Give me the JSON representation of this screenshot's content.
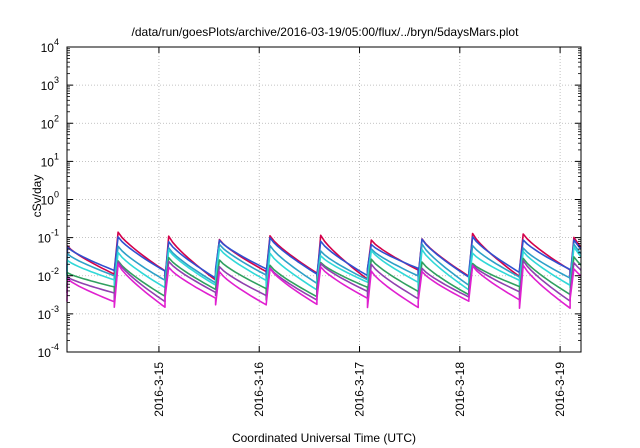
{
  "chart_data": {
    "type": "line",
    "title": "/data/run/goesPlots/archive/2016-03-19/05:00/flux/../bryn/5daysMars.plot",
    "xlabel": "Coordinated Universal Time (UTC)",
    "ylabel": "cSv/day",
    "yscale": "log",
    "ylim": [
      0.0001,
      10000
    ],
    "xlim": [
      "2016-03-14 02:00",
      "2016-03-19 05:00"
    ],
    "y_ticks": [
      {
        "base": "10",
        "exp": "-4",
        "value": 0.0001
      },
      {
        "base": "10",
        "exp": "-3",
        "value": 0.001
      },
      {
        "base": "10",
        "exp": "-2",
        "value": 0.01
      },
      {
        "base": "10",
        "exp": "-1",
        "value": 0.1
      },
      {
        "base": "10",
        "exp": "0",
        "value": 1
      },
      {
        "base": "10",
        "exp": "1",
        "value": 10
      },
      {
        "base": "10",
        "exp": "2",
        "value": 100
      },
      {
        "base": "10",
        "exp": "3",
        "value": 1000
      },
      {
        "base": "10",
        "exp": "4",
        "value": 10000
      }
    ],
    "x_ticks": [
      {
        "label": "2016-3-15",
        "value": "2016-03-15 00:00"
      },
      {
        "label": "2016-3-16",
        "value": "2016-03-16 00:00"
      },
      {
        "label": "2016-3-17",
        "value": "2016-03-17 00:00"
      },
      {
        "label": "2016-3-18",
        "value": "2016-03-18 00:00"
      },
      {
        "label": "2016-3-19",
        "value": "2016-03-19 00:00"
      }
    ],
    "grid": true,
    "legend": "none",
    "series": [
      {
        "color": "#d4004a",
        "peak": 0.11,
        "trough": 0.011
      },
      {
        "color": "#3050d0",
        "peak": 0.09,
        "trough": 0.012
      },
      {
        "color": "#2ea0c8",
        "peak": 0.06,
        "trough": 0.008
      },
      {
        "color": "#30d8d8",
        "peak": 0.045,
        "trough": 0.006
      },
      {
        "color": "#30a060",
        "peak": 0.025,
        "trough": 0.004
      },
      {
        "color": "#9040b0",
        "peak": 0.02,
        "trough": 0.003
      },
      {
        "color": "#e020d0",
        "peak": 0.016,
        "trough": 0.002
      }
    ]
  }
}
